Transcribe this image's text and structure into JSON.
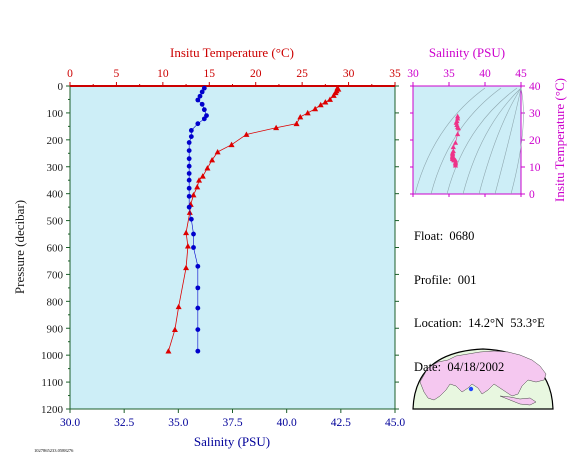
{
  "main_chart": {
    "top_axis_label": "Insitu Temperature (°C)",
    "bottom_axis_label": "Salinity (PSU)",
    "left_axis_label": "Pressure (decibar)",
    "colors": {
      "background": "#cdeef7",
      "temperature": "#dd0000",
      "salinity": "#0000cc",
      "axes": "#1c5e2a",
      "top_axis": "#cc0000"
    }
  },
  "inset_chart": {
    "top_axis_label": "Salinity (PSU)",
    "right_axis_label": "Insitu Temperature (°C)",
    "colors": {
      "background": "#cdeef7",
      "points": "#ee3388",
      "axes": "#cc00cc"
    }
  },
  "info": {
    "float": "Float:  0680",
    "profile": "Profile:  001",
    "location": "Location:  14.2°N  53.3°E",
    "date": "Date:  04/18/2002"
  },
  "footer_id": "1027865233.0588276",
  "map": {
    "land_color": "#f5c8f0",
    "ocean_color": "#e8f7e0",
    "marker_color": "#2244ff"
  },
  "chart_data": [
    {
      "type": "scatter",
      "ylabel": "Pressure (decibar)",
      "ylim": [
        1200,
        0
      ],
      "yticks": [
        0,
        100,
        200,
        300,
        400,
        500,
        600,
        700,
        800,
        900,
        1000,
        1100,
        1200
      ],
      "x_bottom": {
        "label": "Salinity (PSU)",
        "lim": [
          30.0,
          45.0
        ],
        "ticks": [
          "30.0",
          "32.5",
          "35.0",
          "37.5",
          "40.0",
          "42.5",
          "45.0"
        ]
      },
      "x_top": {
        "label": "Insitu Temperature (°C)",
        "lim": [
          0,
          35
        ],
        "ticks": [
          "0",
          "5",
          "10",
          "15",
          "20",
          "25",
          "30",
          "35"
        ]
      },
      "grid": false,
      "series": [
        {
          "name": "Temperature",
          "axis": "top",
          "marker": "triangle",
          "points": [
            [
              28.8,
              8
            ],
            [
              28.9,
              12
            ],
            [
              28.7,
              18
            ],
            [
              28.6,
              25
            ],
            [
              28.4,
              35
            ],
            [
              28.0,
              50
            ],
            [
              27.5,
              60
            ],
            [
              27.0,
              70
            ],
            [
              26.4,
              85
            ],
            [
              25.6,
              100
            ],
            [
              24.8,
              115
            ],
            [
              24.4,
              140
            ],
            [
              22.2,
              155
            ],
            [
              19.0,
              180
            ],
            [
              17.4,
              218
            ],
            [
              15.9,
              245
            ],
            [
              15.3,
              275
            ],
            [
              14.8,
              305
            ],
            [
              14.3,
              335
            ],
            [
              13.9,
              350
            ],
            [
              13.7,
              375
            ],
            [
              13.3,
              405
            ],
            [
              13.0,
              440
            ],
            [
              12.9,
              470
            ],
            [
              12.5,
              545
            ],
            [
              12.7,
              595
            ],
            [
              12.5,
              675
            ],
            [
              11.7,
              820
            ],
            [
              11.3,
              905
            ],
            [
              10.6,
              985
            ]
          ]
        },
        {
          "name": "Salinity",
          "axis": "bottom",
          "marker": "circle",
          "points": [
            [
              36.2,
              8
            ],
            [
              36.1,
              22
            ],
            [
              36.0,
              38
            ],
            [
              35.9,
              52
            ],
            [
              36.1,
              68
            ],
            [
              36.2,
              88
            ],
            [
              36.3,
              110
            ],
            [
              36.2,
              122
            ],
            [
              35.9,
              140
            ],
            [
              35.6,
              165
            ],
            [
              35.6,
              188
            ],
            [
              35.5,
              210
            ],
            [
              35.5,
              240
            ],
            [
              35.5,
              270
            ],
            [
              35.5,
              298
            ],
            [
              35.5,
              325
            ],
            [
              35.5,
              350
            ],
            [
              35.5,
              380
            ],
            [
              35.5,
              410
            ],
            [
              35.5,
              450
            ],
            [
              35.6,
              495
            ],
            [
              35.7,
              550
            ],
            [
              35.7,
              600
            ],
            [
              35.9,
              670
            ],
            [
              35.9,
              750
            ],
            [
              35.9,
              825
            ],
            [
              35.9,
              905
            ],
            [
              35.9,
              985
            ]
          ]
        }
      ]
    },
    {
      "type": "scatter",
      "title": "Salinity (PSU)",
      "xlabel": "Salinity (PSU)",
      "ylabel": "Insitu Temperature (°C)",
      "xlim": [
        30,
        45
      ],
      "ylim": [
        0,
        40
      ],
      "xticks": [
        "30",
        "35",
        "40",
        "45"
      ],
      "yticks": [
        "0",
        "10",
        "20",
        "30",
        "40"
      ],
      "series": [
        {
          "name": "T-S",
          "marker": "triangle",
          "points": [
            [
              36.2,
              28.8
            ],
            [
              36.2,
              28.0
            ],
            [
              36.1,
              27.0
            ],
            [
              36.0,
              26.4
            ],
            [
              36.1,
              25.6
            ],
            [
              36.2,
              24.8
            ],
            [
              36.3,
              24.4
            ],
            [
              36.2,
              22.2
            ],
            [
              35.9,
              19.0
            ],
            [
              35.6,
              17.4
            ],
            [
              35.6,
              15.9
            ],
            [
              35.5,
              15.3
            ],
            [
              35.5,
              14.8
            ],
            [
              35.5,
              14.3
            ],
            [
              35.5,
              13.9
            ],
            [
              35.5,
              13.7
            ],
            [
              35.5,
              13.3
            ],
            [
              35.5,
              13.0
            ],
            [
              35.6,
              12.9
            ],
            [
              35.7,
              12.5
            ],
            [
              35.7,
              12.7
            ],
            [
              35.9,
              12.5
            ],
            [
              35.9,
              11.7
            ],
            [
              35.9,
              11.3
            ],
            [
              35.9,
              10.6
            ]
          ]
        }
      ]
    }
  ]
}
